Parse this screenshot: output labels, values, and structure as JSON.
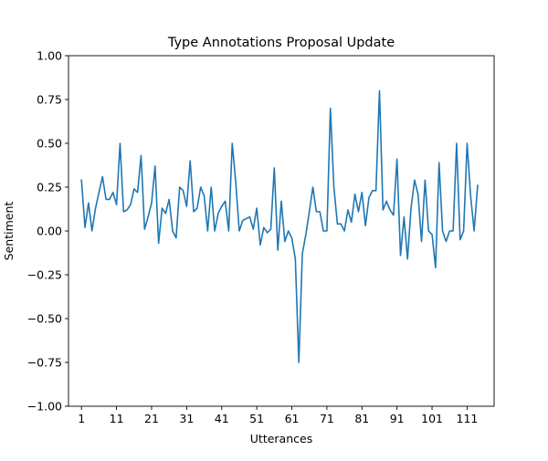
{
  "chart_data": {
    "type": "line",
    "title": "Type Annotations Proposal Update",
    "xlabel": "Utterances",
    "ylabel": "Sentiment",
    "ylim": [
      -1.0,
      1.0
    ],
    "xlim": [
      -2.7,
      118.7
    ],
    "grid": false,
    "x_ticks": [
      1,
      11,
      21,
      31,
      41,
      51,
      61,
      71,
      81,
      91,
      101,
      111
    ],
    "y_ticks": [
      -1.0,
      -0.75,
      -0.5,
      -0.25,
      0.0,
      0.25,
      0.5,
      0.75,
      1.0
    ],
    "x_tick_labels": [
      "1",
      "11",
      "21",
      "31",
      "41",
      "51",
      "61",
      "71",
      "81",
      "91",
      "101",
      "111"
    ],
    "y_tick_labels": [
      "−1.00",
      "−0.75",
      "−0.50",
      "−0.25",
      "0.00",
      "0.25",
      "0.50",
      "0.75",
      "1.00"
    ],
    "series": [
      {
        "color": "#1f77b4",
        "x_start": 1,
        "values": [
          0.29,
          0.02,
          0.16,
          0.0,
          0.13,
          0.22,
          0.31,
          0.18,
          0.18,
          0.22,
          0.15,
          0.5,
          0.11,
          0.12,
          0.15,
          0.24,
          0.22,
          0.43,
          0.01,
          0.08,
          0.16,
          0.37,
          -0.07,
          0.13,
          0.1,
          0.18,
          0.0,
          -0.04,
          0.25,
          0.23,
          0.14,
          0.4,
          0.11,
          0.13,
          0.25,
          0.2,
          0.0,
          0.25,
          0.0,
          0.1,
          0.14,
          0.17,
          0.0,
          0.5,
          0.28,
          0.0,
          0.06,
          0.07,
          0.08,
          0.01,
          0.13,
          -0.08,
          0.02,
          -0.01,
          0.01,
          0.36,
          -0.11,
          0.17,
          -0.06,
          0.0,
          -0.04,
          -0.16,
          -0.75,
          -0.13,
          -0.02,
          0.11,
          0.25,
          0.11,
          0.11,
          0.0,
          0.0,
          0.7,
          0.25,
          0.04,
          0.04,
          0.0,
          0.12,
          0.05,
          0.21,
          0.11,
          0.22,
          0.03,
          0.19,
          0.23,
          0.23,
          0.8,
          0.12,
          0.17,
          0.12,
          0.09,
          0.41,
          -0.14,
          0.08,
          -0.16,
          0.13,
          0.29,
          0.21,
          -0.06,
          0.29,
          0.0,
          -0.02,
          -0.21,
          0.39,
          0.0,
          -0.06,
          0.0,
          0.0,
          0.5,
          -0.05,
          0.0,
          0.5,
          0.2,
          0.0,
          0.26
        ]
      }
    ]
  }
}
